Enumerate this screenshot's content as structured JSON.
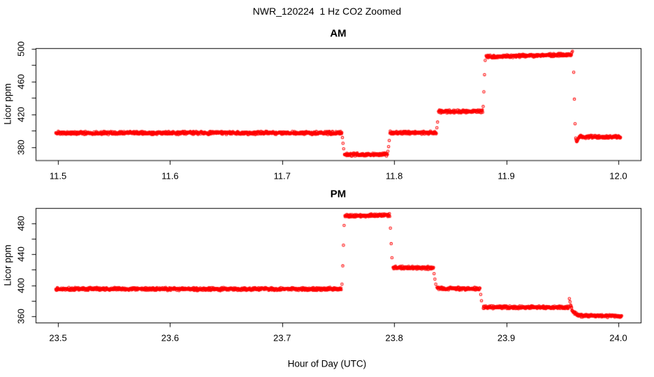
{
  "figure": {
    "title": "NWR_120224  1 Hz CO2 Zoomed",
    "xlabel": "Hour of Day (UTC)",
    "point_color": "#FF0000",
    "axis_color": "#000000",
    "background_color": "#FFFFFF"
  },
  "chart_data": [
    {
      "type": "scatter",
      "title": "AM",
      "ylabel": "Licor ppm",
      "marker": "open-circle",
      "sample_rate_hz": 1,
      "xlim": [
        11.48,
        12.02
      ],
      "ylim": [
        363.8,
        500.9
      ],
      "xticks": [
        11.5,
        11.6,
        11.7,
        11.8,
        11.9,
        12.0
      ],
      "xtick_labels": [
        "11.5",
        "11.6",
        "11.7",
        "11.8",
        "11.9",
        "12.0"
      ],
      "yticks": [
        380,
        400,
        420,
        440,
        460,
        480,
        500
      ],
      "ytick_labels": [
        "380",
        "",
        "420",
        "",
        "460",
        "",
        "500"
      ],
      "noise_ppm": 1.1,
      "segments": [
        {
          "t0": 11.498,
          "t1": 11.7534,
          "ppm0": 397.2,
          "ppm1": 397.2
        },
        {
          "t0": 11.7556,
          "t1": 11.794,
          "ppm0": 370.7,
          "ppm1": 370.7
        },
        {
          "t0": 11.7962,
          "t1": 11.8376,
          "ppm0": 397.4,
          "ppm1": 397.6
        },
        {
          "t0": 11.8395,
          "t1": 11.879,
          "ppm0": 423.3,
          "ppm1": 423.6
        },
        {
          "t0": 11.882,
          "t1": 11.958,
          "ppm0": 490.5,
          "ppm1": 493.0
        },
        {
          "t0": 11.9648,
          "t1": 12.002,
          "ppm0": 392.3,
          "ppm1": 392.3
        }
      ],
      "transition_points": [
        [
          11.7538,
          391.5
        ],
        [
          11.7543,
          384.5
        ],
        [
          11.7549,
          377.8
        ],
        [
          11.7944,
          374.8
        ],
        [
          11.795,
          380.5
        ],
        [
          11.7956,
          388.0
        ],
        [
          11.8381,
          403.5
        ],
        [
          11.8387,
          410.5
        ],
        [
          11.8794,
          429.5
        ],
        [
          11.88,
          447.5
        ],
        [
          11.8806,
          468.5
        ],
        [
          11.8812,
          486.0
        ],
        [
          11.9585,
          495.5
        ],
        [
          11.9591,
          497.0
        ],
        [
          11.9602,
          471.5
        ],
        [
          11.9608,
          438.5
        ],
        [
          11.9614,
          408.5
        ],
        [
          11.962,
          391.0
        ],
        [
          11.9623,
          389.0
        ],
        [
          11.9626,
          387.2
        ],
        [
          11.9629,
          386.5
        ],
        [
          11.9632,
          387.0
        ],
        [
          11.9636,
          388.0
        ],
        [
          11.964,
          389.3
        ],
        [
          11.9644,
          390.6
        ]
      ]
    },
    {
      "type": "scatter",
      "title": "PM",
      "ylabel": "Licor ppm",
      "marker": "open-circle",
      "sample_rate_hz": 1,
      "xlim": [
        23.48,
        24.02
      ],
      "ylim": [
        352.2,
        499.3
      ],
      "xticks": [
        23.5,
        23.6,
        23.7,
        23.8,
        23.9,
        24.0
      ],
      "xtick_labels": [
        "23.5",
        "23.6",
        "23.7",
        "23.8",
        "23.9",
        "24.0"
      ],
      "yticks": [
        360,
        380,
        400,
        420,
        440,
        460,
        480
      ],
      "ytick_labels": [
        "360",
        "",
        "400",
        "",
        "440",
        "",
        "480"
      ],
      "noise_ppm": 1.1,
      "segments": [
        {
          "t0": 23.498,
          "t1": 23.7528,
          "ppm0": 395.3,
          "ppm1": 395.3
        },
        {
          "t0": 23.756,
          "t1": 23.796,
          "ppm0": 489.3,
          "ppm1": 490.3
        },
        {
          "t0": 23.799,
          "t1": 23.835,
          "ppm0": 422.8,
          "ppm1": 422.5
        },
        {
          "t0": 23.8382,
          "t1": 23.8766,
          "ppm0": 395.8,
          "ppm1": 395.8
        },
        {
          "t0": 23.8795,
          "t1": 23.9558,
          "ppm0": 371.8,
          "ppm1": 371.8
        },
        {
          "t0": 23.9575,
          "t1": 23.966,
          "ppm0": 374.0,
          "ppm1": 361.0,
          "decay_k": 0.11
        },
        {
          "t0": 23.966,
          "t1": 24.003,
          "ppm0": 360.9,
          "ppm1": 360.7
        }
      ],
      "transition_points": [
        [
          23.7534,
          401.5
        ],
        [
          23.7541,
          425.0
        ],
        [
          23.7547,
          451.5
        ],
        [
          23.7553,
          477.0
        ],
        [
          23.7966,
          473.5
        ],
        [
          23.7973,
          453.5
        ],
        [
          23.798,
          435.5
        ],
        [
          23.8356,
          415.0
        ],
        [
          23.8363,
          408.0
        ],
        [
          23.8371,
          401.5
        ],
        [
          23.8772,
          388.3
        ],
        [
          23.8779,
          380.3
        ],
        [
          23.9563,
          383.0
        ],
        [
          23.9569,
          378.8
        ]
      ]
    }
  ]
}
